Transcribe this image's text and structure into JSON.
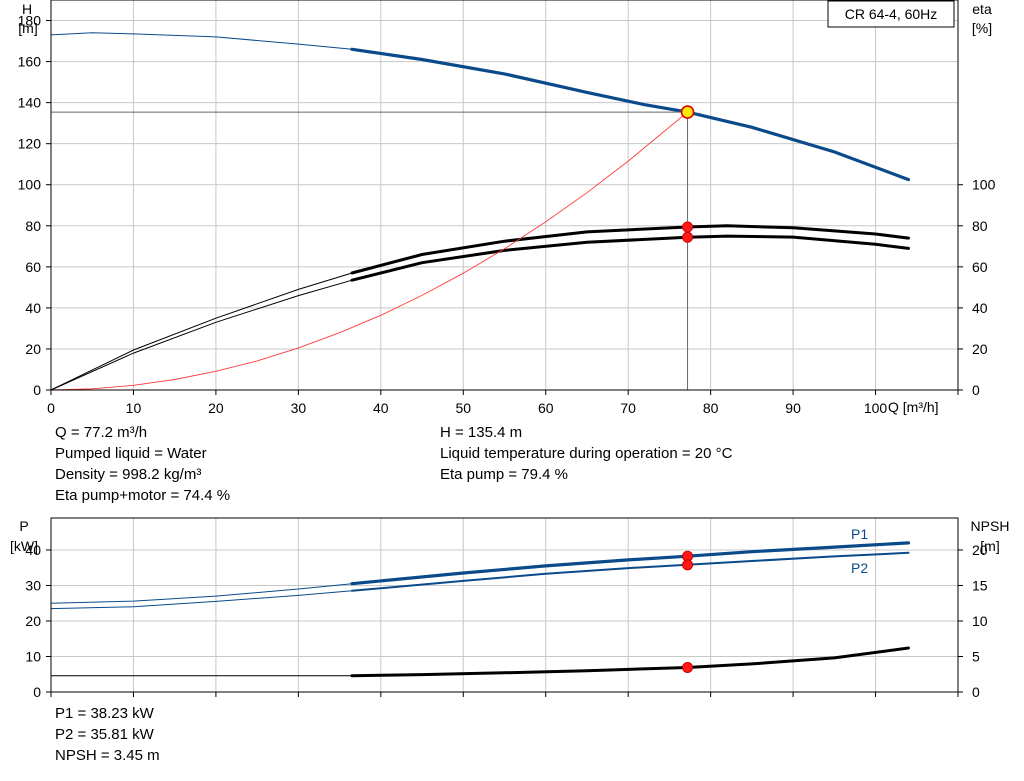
{
  "model_label": "CR 64-4, 60Hz",
  "top_chart": {
    "y_label_line1": "H",
    "y_label_line2": "[m]",
    "y2_label_line1": "eta",
    "y2_label_line2": "[%]",
    "x_label": "Q [m³/h]"
  },
  "bottom_chart": {
    "y_label_line1": "P",
    "y_label_line2": "[kW]",
    "y2_label_line1": "NPSH",
    "y2_label_line2": "[m]",
    "series_label_p1": "P1",
    "series_label_p2": "P2"
  },
  "info_top_left": [
    "Q = 77.2 m³/h",
    "Pumped liquid = Water",
    "Density = 998.2 kg/m³",
    "Eta pump+motor = 74.4 %"
  ],
  "info_top_right": [
    "H = 135.4 m",
    "Liquid temperature during operation = 20 °C",
    "Eta pump = 79.4 %"
  ],
  "info_bottom": [
    "P1 = 38.23 kW",
    "P2 = 35.81 kW",
    "NPSH = 3.45 m"
  ],
  "colors": {
    "head": "#0a4a8a",
    "eta": "#000000",
    "system": "#ff3b3b",
    "marker": "#ff1a1a",
    "duty_fill": "#ffeb00",
    "grid": "#c8c8c8"
  },
  "chart_data": [
    {
      "type": "line",
      "title": "",
      "xlabel": "Q [m³/h]",
      "ylabel": "H [m]",
      "y2label": "eta [%]",
      "xlim": [
        0,
        110
      ],
      "ylim": [
        0,
        190
      ],
      "y2lim": [
        0,
        190
      ],
      "x_ticks": [
        0,
        10,
        20,
        30,
        40,
        50,
        60,
        70,
        80,
        90,
        100
      ],
      "y_ticks": [
        0,
        20,
        40,
        60,
        80,
        100,
        120,
        140,
        160,
        180
      ],
      "y2_ticks": [
        0,
        20,
        40,
        60,
        80,
        100
      ],
      "grid": true,
      "series": [
        {
          "name": "H",
          "axis": "y",
          "style": "head",
          "points": [
            [
              0,
              173
            ],
            [
              5,
              174
            ],
            [
              10,
              173.5
            ],
            [
              20,
              172
            ],
            [
              30,
              168.5
            ],
            [
              36.5,
              166
            ],
            [
              45,
              161
            ],
            [
              55,
              154
            ],
            [
              65,
              145
            ],
            [
              72,
              139
            ],
            [
              77.2,
              135.4
            ],
            [
              85,
              128
            ],
            [
              95,
              116
            ],
            [
              104,
              102.5
            ]
          ]
        },
        {
          "name": "eta pump",
          "axis": "y2",
          "style": "eta",
          "points": [
            [
              0,
              0
            ],
            [
              10,
              19.5
            ],
            [
              20,
              35
            ],
            [
              30,
              49
            ],
            [
              36.5,
              57
            ],
            [
              45,
              66
            ],
            [
              55,
              72.5
            ],
            [
              65,
              77
            ],
            [
              77.2,
              79.4
            ],
            [
              82,
              80
            ],
            [
              90,
              79
            ],
            [
              100,
              76
            ],
            [
              104,
              74
            ]
          ]
        },
        {
          "name": "eta pump+motor",
          "axis": "y2",
          "style": "eta",
          "points": [
            [
              0,
              0
            ],
            [
              10,
              18
            ],
            [
              20,
              33
            ],
            [
              30,
              46
            ],
            [
              36.5,
              53.5
            ],
            [
              45,
              62
            ],
            [
              55,
              68
            ],
            [
              65,
              72
            ],
            [
              77.2,
              74.4
            ],
            [
              82,
              75
            ],
            [
              90,
              74.5
            ],
            [
              100,
              71
            ],
            [
              104,
              69
            ]
          ]
        },
        {
          "name": "system",
          "axis": "y",
          "style": "system",
          "points": [
            [
              0,
              0
            ],
            [
              5,
              0.6
            ],
            [
              10,
              2.3
            ],
            [
              15,
              5.1
            ],
            [
              20,
              9.1
            ],
            [
              25,
              14.2
            ],
            [
              30,
              20.5
            ],
            [
              35,
              27.9
            ],
            [
              40,
              36.4
            ],
            [
              45,
              46.1
            ],
            [
              50,
              56.9
            ],
            [
              55,
              68.8
            ],
            [
              60,
              81.9
            ],
            [
              65,
              96.1
            ],
            [
              70,
              111.5
            ],
            [
              77.2,
              135.4
            ]
          ]
        }
      ],
      "operating_point": {
        "q": 77.2,
        "h": 135.4,
        "eta_pump": 79.4,
        "eta_total": 74.4
      }
    },
    {
      "type": "line",
      "title": "",
      "xlabel": "Q [m³/h]",
      "ylabel": "P [kW]",
      "y2label": "NPSH [m]",
      "xlim": [
        0,
        110
      ],
      "ylim": [
        0,
        49
      ],
      "y2lim": [
        0,
        24.5
      ],
      "y_ticks": [
        0,
        10,
        20,
        30,
        40
      ],
      "y2_ticks": [
        0,
        5,
        10,
        15,
        20
      ],
      "grid": true,
      "series": [
        {
          "name": "P1",
          "axis": "y",
          "style": "head",
          "points": [
            [
              0,
              25
            ],
            [
              10,
              25.6
            ],
            [
              20,
              27
            ],
            [
              30,
              29
            ],
            [
              36.5,
              30.5
            ],
            [
              50,
              33.5
            ],
            [
              60,
              35.5
            ],
            [
              70,
              37.2
            ],
            [
              77.2,
              38.23
            ],
            [
              85,
              39.5
            ],
            [
              95,
              40.8
            ],
            [
              104,
              42
            ]
          ]
        },
        {
          "name": "P2",
          "axis": "y",
          "style": "head-thin",
          "points": [
            [
              0,
              23.5
            ],
            [
              10,
              24
            ],
            [
              20,
              25.5
            ],
            [
              30,
              27.2
            ],
            [
              36.5,
              28.5
            ],
            [
              50,
              31.3
            ],
            [
              60,
              33.3
            ],
            [
              70,
              34.9
            ],
            [
              77.2,
              35.81
            ],
            [
              85,
              36.9
            ],
            [
              95,
              38.2
            ],
            [
              104,
              39.2
            ]
          ]
        },
        {
          "name": "NPSH",
          "axis": "y2",
          "style": "eta",
          "points": [
            [
              0,
              2.3
            ],
            [
              20,
              2.3
            ],
            [
              36.5,
              2.3
            ],
            [
              45,
              2.45
            ],
            [
              55,
              2.7
            ],
            [
              65,
              3
            ],
            [
              77.2,
              3.45
            ],
            [
              85,
              3.95
            ],
            [
              95,
              4.8
            ],
            [
              104,
              6.2
            ]
          ]
        }
      ],
      "operating_point": {
        "q": 77.2,
        "p1": 38.23,
        "p2": 35.81,
        "npsh": 3.45
      }
    }
  ]
}
